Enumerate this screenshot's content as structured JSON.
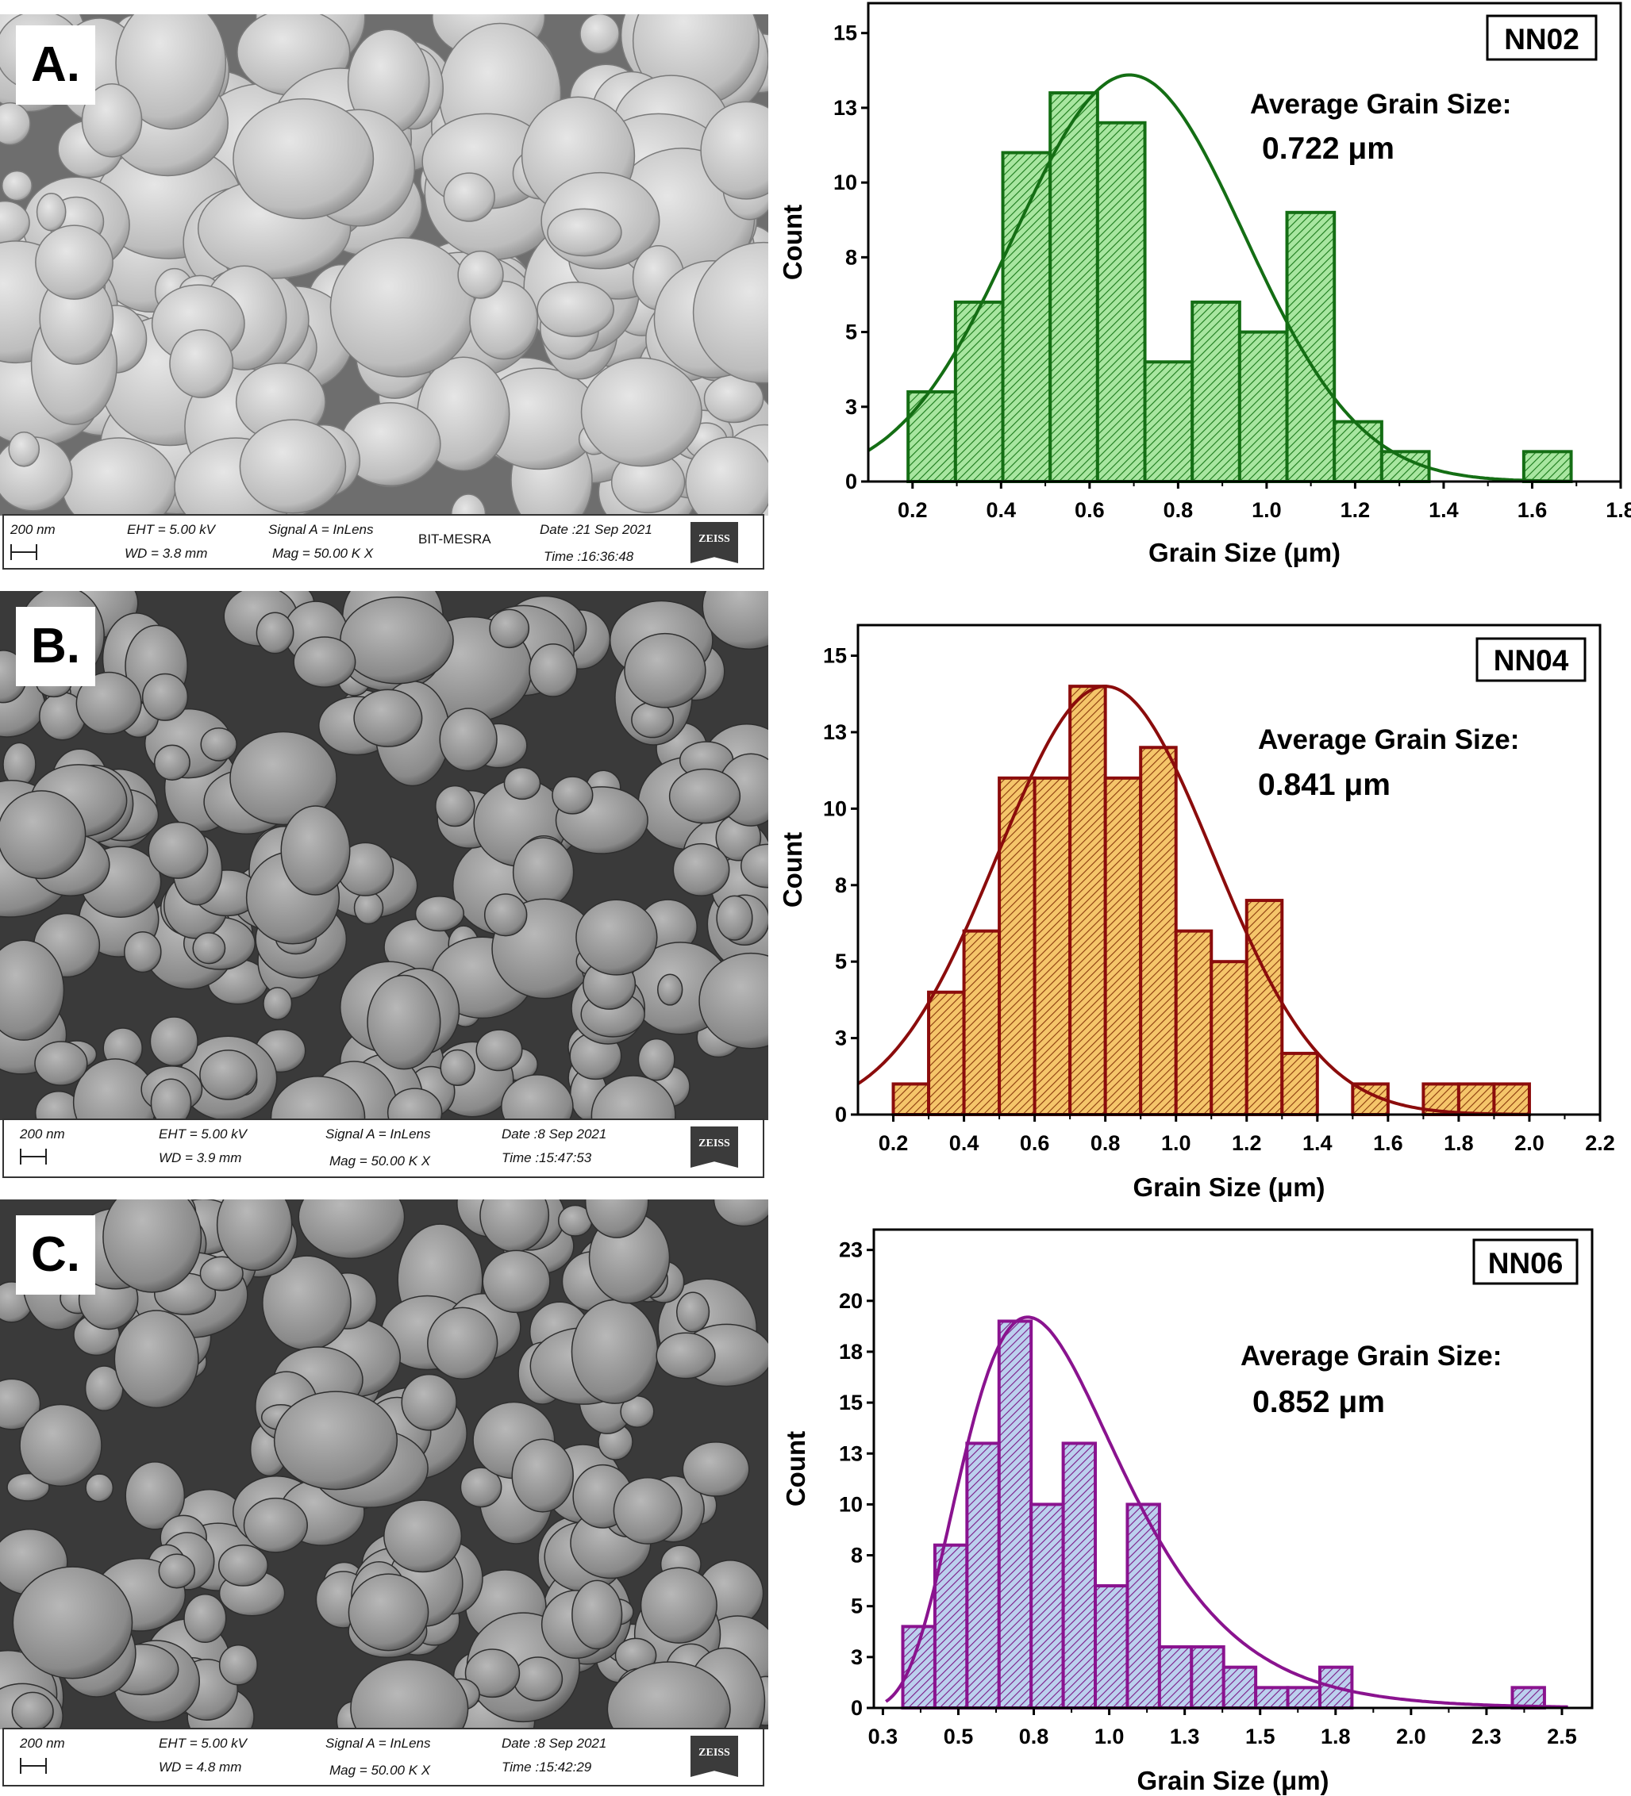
{
  "sem_panels": [
    {
      "label": "A.",
      "scale_bar": "200 nm",
      "eht": "EHT =  5.00 kV",
      "wd": "WD =  3.8 mm",
      "signal": "Signal A = InLens",
      "mag": "Mag =   50.00 K X",
      "institute": "BIT-MESRA",
      "date": "Date :21 Sep 2021",
      "time": "Time :16:36:48",
      "logo": "ZEISS"
    },
    {
      "label": "B.",
      "scale_bar": "200 nm",
      "eht": "EHT =  5.00 kV",
      "wd": "WD =  3.9 mm",
      "signal": "Signal A = InLens",
      "mag": "Mag =   50.00 K X",
      "date": "Date :8 Sep 2021",
      "time": "Time :15:47:53",
      "logo": "ZEISS"
    },
    {
      "label": "C.",
      "scale_bar": "200 nm",
      "eht": "EHT =  5.00 kV",
      "wd": "WD =  4.8 mm",
      "signal": "Signal A = InLens",
      "mag": "Mag =   50.00 K X",
      "date": "Date :8 Sep 2021",
      "time": "Time :15:42:29",
      "logo": "ZEISS"
    }
  ],
  "chart_data": [
    {
      "type": "bar",
      "title": "NN02",
      "annotation_label": "Average Grain Size:",
      "annotation_value": "0.722 μm",
      "xlabel": "Grain Size (μm)",
      "ylabel": "Count",
      "xlim": [
        0.1,
        1.8
      ],
      "ylim": [
        0,
        16
      ],
      "xticks": [
        0.2,
        0.4,
        0.6,
        0.8,
        1.0,
        1.2,
        1.4,
        1.6,
        1.8
      ],
      "xtick_labels": [
        "0.2",
        "0.4",
        "0.6",
        "0.8",
        "1.0",
        "1.2",
        "1.4",
        "1.6",
        "1.8"
      ],
      "yticks": [
        0,
        2.5,
        5,
        7.5,
        10,
        12.5,
        15
      ],
      "ytick_labels": [
        "0",
        "3",
        "5",
        "8",
        "10",
        "13",
        "15"
      ],
      "bin_start": 0.19,
      "bin_width": 0.107,
      "values": [
        3,
        6,
        11,
        13,
        12,
        4,
        6,
        5,
        9,
        2,
        1,
        0,
        0,
        1
      ],
      "fit": {
        "type": "normal",
        "mean": 0.69,
        "sigma": 0.26,
        "peak": 13.6
      },
      "colors": {
        "stroke": "#146e14",
        "fill": "#a8e6a0",
        "hatch": "#1a7a1a"
      }
    },
    {
      "type": "bar",
      "title": "NN04",
      "annotation_label": "Average Grain Size:",
      "annotation_value": "0.841 μm",
      "xlabel": "Grain Size (μm)",
      "ylabel": "Count",
      "xlim": [
        0.1,
        2.2
      ],
      "ylim": [
        0,
        16
      ],
      "xticks": [
        0.2,
        0.4,
        0.6,
        0.8,
        1.0,
        1.2,
        1.4,
        1.6,
        1.8,
        2.0,
        2.2
      ],
      "xtick_labels": [
        "0.2",
        "0.4",
        "0.6",
        "0.8",
        "1.0",
        "1.2",
        "1.4",
        "1.6",
        "1.8",
        "2.0",
        "2.2"
      ],
      "yticks": [
        0,
        2.5,
        5,
        7.5,
        10,
        12.5,
        15
      ],
      "ytick_labels": [
        "0",
        "3",
        "5",
        "8",
        "10",
        "13",
        "15"
      ],
      "bin_start": 0.2,
      "bin_width": 0.1,
      "values": [
        1,
        4,
        6,
        11,
        11,
        14,
        11,
        12,
        6,
        5,
        7,
        2,
        0,
        1,
        0,
        1,
        1,
        1
      ],
      "fit": {
        "type": "normal",
        "mean": 0.8,
        "sigma": 0.305,
        "peak": 14
      },
      "colors": {
        "stroke": "#8b0c0c",
        "fill": "#f5c56a",
        "hatch": "#8b3a0c"
      }
    },
    {
      "type": "bar",
      "title": "NN06",
      "annotation_label": "Average Grain Size:",
      "annotation_value": "0.852 μm",
      "xlabel": "Grain Size (μm)",
      "ylabel": "Count",
      "xlim": [
        0.22,
        2.6
      ],
      "ylim": [
        0,
        23.5
      ],
      "xticks": [
        0.25,
        0.5,
        0.75,
        1.0,
        1.25,
        1.5,
        1.75,
        2.0,
        2.25,
        2.5
      ],
      "xtick_labels": [
        "0.3",
        "0.5",
        "0.8",
        "1.0",
        "1.3",
        "1.5",
        "1.8",
        "2.0",
        "2.3",
        "2.5"
      ],
      "yticks": [
        0,
        2.5,
        5,
        7.5,
        10,
        12.5,
        15,
        17.5,
        20,
        22.5
      ],
      "ytick_labels": [
        "0",
        "3",
        "5",
        "8",
        "10",
        "13",
        "15",
        "18",
        "20",
        "23"
      ],
      "bin_start": 0.316,
      "bin_width": 0.1063,
      "values": [
        4,
        8,
        13,
        19,
        10,
        13,
        6,
        10,
        3,
        3,
        2,
        1,
        1,
        2,
        0,
        0,
        0,
        0,
        0,
        1
      ],
      "fit": {
        "type": "lognormal",
        "mode": 0.73,
        "sigma_ln": 0.36,
        "peak": 19.2
      },
      "colors": {
        "stroke": "#8a138f",
        "fill": "#bcd0ee",
        "hatch": "#7a1a86"
      }
    }
  ]
}
